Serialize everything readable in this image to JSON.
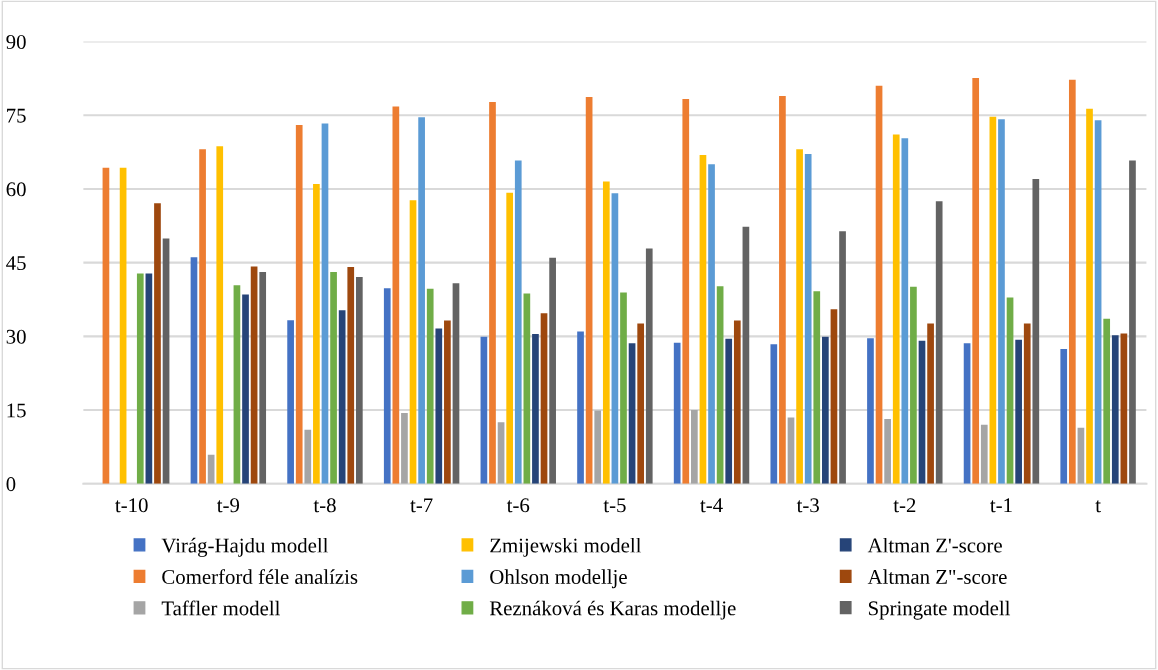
{
  "chart_data": {
    "type": "bar",
    "categories": [
      "t-10",
      "t-9",
      "t-8",
      "t-7",
      "t-6",
      "t-5",
      "t-4",
      "t-3",
      "t-2",
      "t-1",
      "t"
    ],
    "series": [
      {
        "name": "Virág-Hajdu modell",
        "color": "#4472c4",
        "values": [
          null,
          46.1,
          33.3,
          39.8,
          29.9,
          31.0,
          28.7,
          28.4,
          29.6,
          28.6,
          27.4
        ]
      },
      {
        "name": "Comerford féle analízis",
        "color": "#ed7d31",
        "values": [
          64.3,
          68.1,
          73.0,
          76.8,
          77.7,
          78.7,
          78.3,
          78.9,
          81.0,
          82.6,
          82.2
        ]
      },
      {
        "name": "Taffler modell",
        "color": "#a5a5a5",
        "values": [
          null,
          5.9,
          11.0,
          14.4,
          12.5,
          14.9,
          15.0,
          13.5,
          13.2,
          12.0,
          11.4
        ]
      },
      {
        "name": "Zmijewski modell",
        "color": "#ffc000",
        "values": [
          64.3,
          68.7,
          61.0,
          57.7,
          59.2,
          61.5,
          66.9,
          68.1,
          71.1,
          74.7,
          76.3
        ]
      },
      {
        "name": "Ohlson modellje",
        "color": "#5b9bd5",
        "values": [
          null,
          null,
          73.3,
          74.6,
          65.8,
          59.1,
          65.0,
          67.1,
          70.3,
          74.2,
          74.0
        ]
      },
      {
        "name": "Reznáková és Karas modellje",
        "color": "#70ad47",
        "values": [
          42.8,
          40.4,
          43.1,
          39.7,
          38.7,
          38.9,
          40.2,
          39.2,
          40.1,
          37.9,
          33.6
        ]
      },
      {
        "name": "Altman Z'-score",
        "color": "#264478",
        "values": [
          42.8,
          38.5,
          35.3,
          31.6,
          30.5,
          28.6,
          29.5,
          29.9,
          29.1,
          29.3,
          30.2
        ]
      },
      {
        "name": "Altman Z\"-score",
        "color": "#9e480e",
        "values": [
          57.1,
          44.2,
          44.1,
          33.2,
          34.7,
          32.6,
          33.2,
          35.5,
          32.6,
          32.6,
          30.6
        ]
      },
      {
        "name": "Springate modell",
        "color": "#636363",
        "values": [
          49.9,
          43.1,
          42.1,
          40.8,
          46.0,
          47.9,
          52.3,
          51.4,
          57.5,
          62.0,
          65.8
        ]
      }
    ],
    "ylim": [
      0,
      90
    ],
    "yticks": [
      0,
      15,
      30,
      45,
      60,
      75,
      90
    ],
    "grid": "y",
    "legend": "bottom"
  }
}
